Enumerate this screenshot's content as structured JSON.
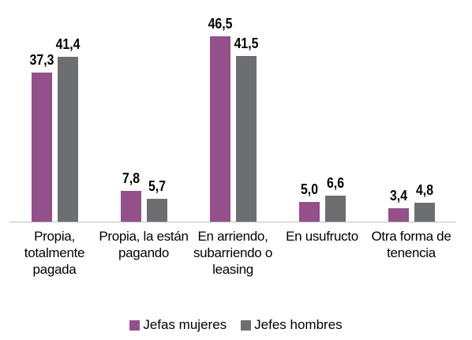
{
  "chart_data": {
    "type": "bar",
    "categories": [
      "Propia, totalmente pagada",
      "Propia, la están pagando",
      "En arriendo, subarriendo o leasing",
      "En usufructo",
      "Otra forma de tenencia"
    ],
    "series": [
      {
        "name": "Jefas mujeres",
        "color": "#93508a",
        "values": [
          37.3,
          7.8,
          46.5,
          5.0,
          3.4
        ],
        "value_labels": [
          "37,3",
          "7,8",
          "46,5",
          "5,0",
          "3,4"
        ]
      },
      {
        "name": "Jefes hombres",
        "color": "#6d6e71",
        "values": [
          41.4,
          5.7,
          41.5,
          6.6,
          4.8
        ],
        "value_labels": [
          "41,4",
          "5,7",
          "41,5",
          "6,6",
          "4,8"
        ]
      }
    ],
    "legend": "bottom"
  }
}
